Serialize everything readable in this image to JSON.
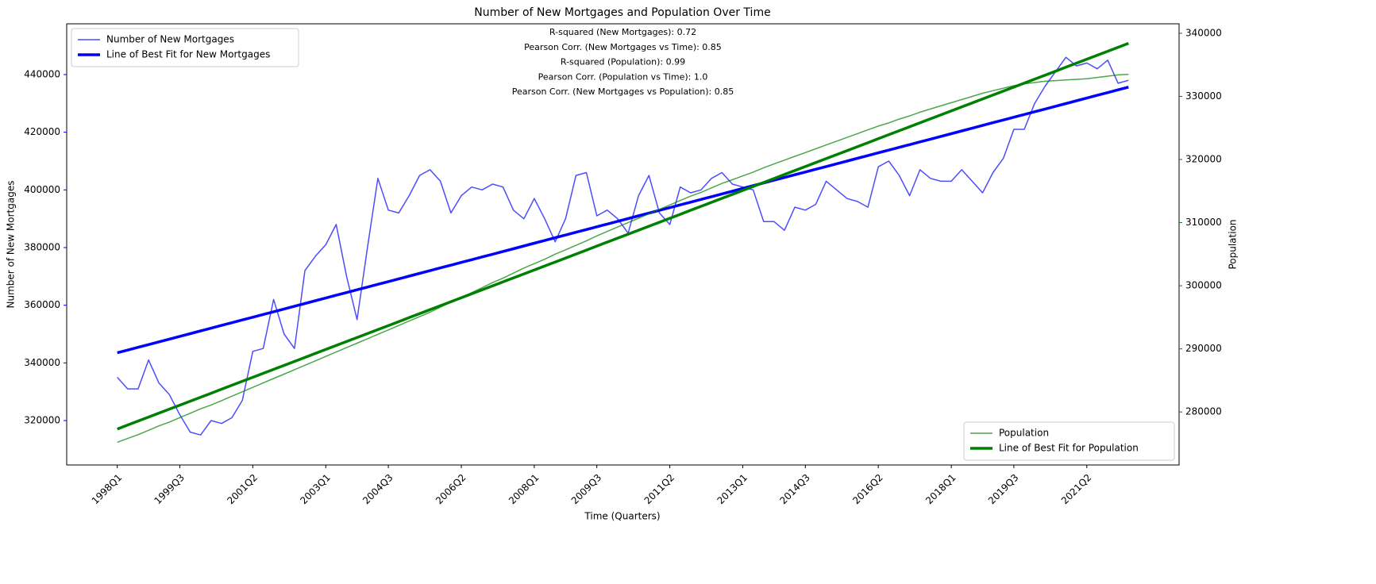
{
  "chart_data": {
    "type": "line",
    "title": "Number of New Mortgages and Population Over Time",
    "xlabel": "Time (Quarters)",
    "ylabel": "Number of New Mortgages",
    "y2label": "Population",
    "annotations": [
      "R-squared (New Mortgages): 0.72",
      "Pearson Corr. (New Mortgages vs Time): 0.85",
      "R-squared (Population): 0.99",
      "Pearson Corr. (Population vs Time): 1.0",
      "Pearson Corr. (New Mortgages vs Population): 0.85"
    ],
    "legend": "upper left",
    "legend2": "lower right",
    "categories": [
      "1998Q1",
      null,
      null,
      null,
      null,
      null,
      "1999Q3",
      null,
      null,
      null,
      null,
      null,
      null,
      "2001Q2",
      null,
      null,
      null,
      null,
      null,
      null,
      "2003Q1",
      null,
      null,
      null,
      null,
      null,
      "2004Q3",
      null,
      null,
      null,
      null,
      null,
      null,
      "2006Q2",
      null,
      null,
      null,
      null,
      null,
      null,
      "2008Q1",
      null,
      null,
      null,
      null,
      null,
      "2009Q3",
      null,
      null,
      null,
      null,
      null,
      null,
      "2011Q2",
      null,
      null,
      null,
      null,
      null,
      null,
      "2013Q1",
      null,
      null,
      null,
      null,
      null,
      "2014Q3",
      null,
      null,
      null,
      null,
      null,
      null,
      "2016Q2",
      null,
      null,
      null,
      null,
      null,
      null,
      "2018Q1",
      null,
      null,
      null,
      null,
      null,
      "2019Q3",
      null,
      null,
      null,
      null,
      null,
      null,
      "2021Q2",
      null,
      null,
      null,
      null
    ],
    "ylim": [
      304600,
      457600
    ],
    "yticks": [
      320000,
      340000,
      360000,
      380000,
      400000,
      420000,
      440000
    ],
    "y2lim": [
      271600,
      341500
    ],
    "y2ticks": [
      280000,
      290000,
      300000,
      310000,
      320000,
      330000,
      340000
    ],
    "series": [
      {
        "name": "Number of New Mortgages",
        "color": "#0000ff",
        "opacity": 0.7,
        "width": 1.5,
        "values": [
          335000,
          331000,
          331000,
          341000,
          333000,
          329000,
          322000,
          316000,
          315000,
          320000,
          319000,
          321000,
          327000,
          344000,
          345000,
          362000,
          350000,
          345000,
          372000,
          377000,
          381000,
          388000,
          370000,
          355000,
          380000,
          404000,
          393000,
          392000,
          398000,
          405000,
          407000,
          403000,
          392000,
          398000,
          401000,
          400000,
          402000,
          401000,
          393000,
          390000,
          397000,
          390000,
          382000,
          390000,
          405000,
          406000,
          391000,
          393000,
          390000,
          385000,
          398000,
          405000,
          392000,
          388000,
          401000,
          399000,
          400000,
          404000,
          406000,
          402000,
          401000,
          400000,
          389000,
          389000,
          386000,
          394000,
          393000,
          395000,
          403000,
          400000,
          397000,
          396000,
          394000,
          408000,
          410000,
          405000,
          398000,
          407000,
          404000,
          403000,
          403000,
          407000,
          403000,
          399000,
          406000,
          411000,
          421000,
          421000,
          430000,
          436000,
          441000,
          446000,
          443000,
          444000,
          442000,
          445000,
          437000,
          438000
        ]
      },
      {
        "name": "Line of Best Fit for New Mortgages",
        "color": "#0000ff",
        "opacity": 1,
        "width": 3.5,
        "values": [
          343500,
          344450,
          345400,
          346350,
          347300,
          348250,
          349200,
          350150,
          351100,
          352050,
          353000,
          353950,
          354900,
          355850,
          356800,
          357750,
          358700,
          359650,
          360600,
          361550,
          362500,
          363450,
          364400,
          365350,
          366300,
          367250,
          368200,
          369150,
          370100,
          371050,
          372000,
          372950,
          373900,
          374850,
          375800,
          376750,
          377700,
          378650,
          379600,
          380550,
          381500,
          382450,
          383400,
          384350,
          385300,
          386250,
          387200,
          388150,
          389100,
          390050,
          391000,
          391950,
          392900,
          393850,
          394800,
          395750,
          396700,
          397650,
          398600,
          399550,
          400500,
          401450,
          402400,
          403350,
          404300,
          405250,
          406200,
          407150,
          408100,
          409050,
          410000,
          410950,
          411900,
          412850,
          413800,
          414750,
          415700,
          416650,
          417600,
          418550,
          419500,
          420450,
          421400,
          422350,
          423300,
          424250,
          425200,
          426150,
          427100,
          428050,
          429000,
          429950,
          430900,
          431850,
          432800,
          433750,
          434700,
          435650
        ]
      },
      {
        "name": "Population",
        "color": "#008000",
        "opacity": 0.7,
        "width": 1.5,
        "axis": "y2",
        "values": [
          275200,
          275800,
          276400,
          277100,
          277800,
          278400,
          279100,
          279800,
          280500,
          281100,
          281800,
          282500,
          283200,
          283900,
          284600,
          285300,
          286000,
          286700,
          287400,
          288100,
          288800,
          289500,
          290200,
          290900,
          291600,
          292300,
          293000,
          293700,
          294400,
          295100,
          295800,
          296600,
          297400,
          298100,
          298900,
          299700,
          300500,
          301200,
          302000,
          302800,
          303500,
          304200,
          305000,
          305700,
          306400,
          307100,
          307900,
          308600,
          309300,
          310000,
          310700,
          311400,
          312100,
          312800,
          313500,
          314200,
          314800,
          315500,
          316200,
          316800,
          317400,
          318000,
          318700,
          319300,
          319900,
          320500,
          321100,
          321700,
          322300,
          322900,
          323500,
          324100,
          324700,
          325300,
          325800,
          326400,
          326900,
          327500,
          328000,
          328500,
          329000,
          329500,
          330000,
          330500,
          330900,
          331300,
          331700,
          332000,
          332200,
          332400,
          332500,
          332600,
          332700,
          332800,
          333000,
          333200,
          333400,
          333500
        ]
      },
      {
        "name": "Line of Best Fit for Population",
        "color": "#008000",
        "opacity": 1,
        "width": 3.5,
        "axis": "y2",
        "values": [
          277300,
          277930,
          278560,
          279190,
          279820,
          280450,
          281080,
          281710,
          282340,
          282970,
          283600,
          284230,
          284860,
          285490,
          286120,
          286750,
          287380,
          288010,
          288640,
          289270,
          289900,
          290530,
          291160,
          291790,
          292420,
          293050,
          293680,
          294310,
          294940,
          295570,
          296200,
          296830,
          297460,
          298090,
          298720,
          299350,
          299980,
          300610,
          301240,
          301870,
          302500,
          303130,
          303760,
          304390,
          305020,
          305650,
          306280,
          306910,
          307540,
          308170,
          308800,
          309430,
          310060,
          310690,
          311320,
          311950,
          312580,
          313210,
          313840,
          314470,
          315100,
          315730,
          316360,
          316990,
          317620,
          318250,
          318880,
          319510,
          320140,
          320770,
          321400,
          322030,
          322660,
          323290,
          323920,
          324550,
          325180,
          325810,
          326440,
          327070,
          327700,
          328330,
          328960,
          329590,
          330220,
          330850,
          331480,
          332110,
          332740,
          333370,
          334000,
          334630,
          335260,
          335890,
          336520,
          337150,
          337780,
          338410
        ]
      }
    ]
  }
}
